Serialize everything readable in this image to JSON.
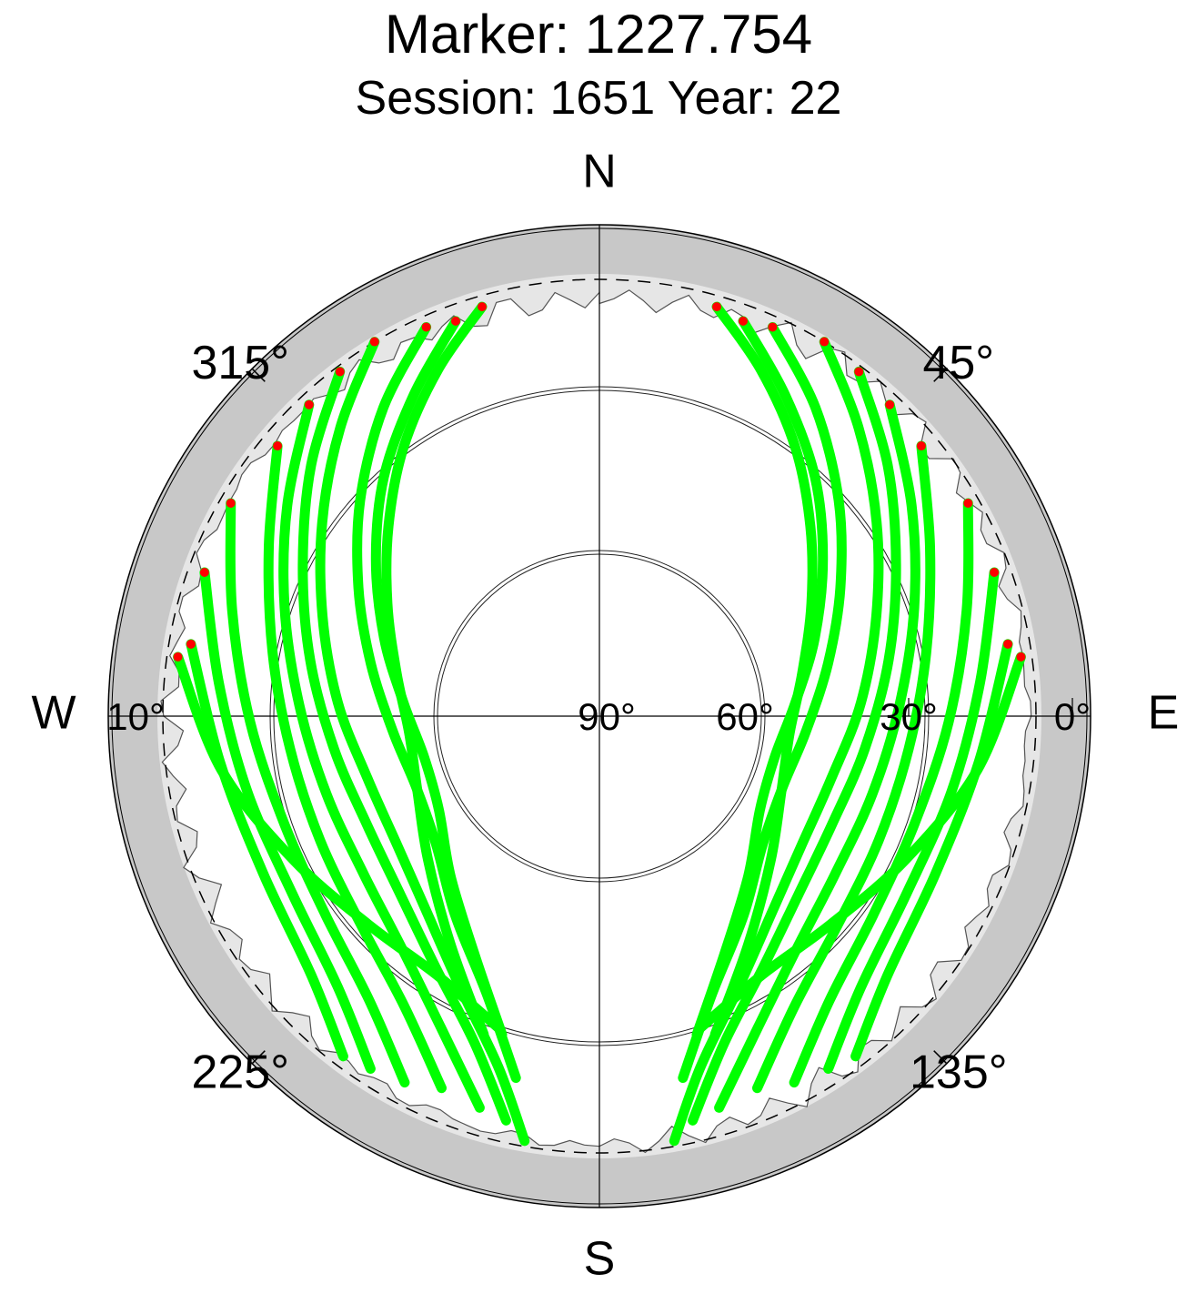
{
  "title": "Marker: 1227.754",
  "subtitle": "Session: 1651 Year: 22",
  "colors": {
    "track": "#00ff00",
    "track_end": "#ff0000",
    "horizon_fill": "#c8c8c8",
    "mask_fill": "#e6e6e6",
    "background": "#ffffff"
  },
  "chart_data": {
    "type": "scatter",
    "projection": "polar-skyplot",
    "title": "Marker: 1227.754",
    "subtitle": "Session: 1651 Year: 22",
    "cardinal_labels": {
      "north": "N",
      "east": "E",
      "south": "S",
      "west": "W"
    },
    "azimuth_labels": [
      {
        "az": 45,
        "text": "45°"
      },
      {
        "az": 135,
        "text": "135°"
      },
      {
        "az": 225,
        "text": "225°"
      },
      {
        "az": 315,
        "text": "315°"
      }
    ],
    "elevation_labels": [
      {
        "el": 90,
        "text": "90°"
      },
      {
        "el": 60,
        "text": "60°"
      },
      {
        "el": 30,
        "text": "30°"
      },
      {
        "el": 0,
        "text": "0°"
      },
      {
        "el": 10,
        "text": "10°"
      }
    ],
    "elevation_rings": [
      90,
      60,
      30
    ],
    "cutoff_elevation": 10,
    "radial_range": [
      0,
      90
    ],
    "satellite_tracks": [
      {
        "az": [
          16,
          25,
          36,
          48,
          62,
          78,
          95,
          112,
          130,
          147,
          160
        ],
        "el": [
          12,
          20,
          29,
          38,
          46,
          52,
          55,
          54,
          49,
          40,
          28
        ]
      },
      {
        "az": [
          20,
          30,
          42,
          55,
          70,
          86,
          103,
          120,
          137,
          152,
          163
        ],
        "el": [
          13,
          22,
          31,
          40,
          48,
          54,
          57,
          56,
          50,
          41,
          29
        ]
      },
      {
        "az": [
          24,
          35,
          48,
          62,
          77,
          94,
          111,
          128,
          144,
          158,
          167
        ],
        "el": [
          12,
          21,
          31,
          40,
          47,
          52,
          54,
          52,
          45,
          35,
          22
        ]
      },
      {
        "az": [
          31,
          42,
          55,
          70,
          87,
          105,
          123,
          139,
          153,
          164,
          170
        ],
        "el": [
          10,
          19,
          28,
          36,
          42,
          46,
          46,
          42,
          34,
          23,
          11
        ]
      },
      {
        "az": [
          37,
          49,
          63,
          79,
          97,
          115,
          132,
          147,
          159,
          167
        ],
        "el": [
          11,
          20,
          29,
          36,
          41,
          43,
          41,
          35,
          26,
          14
        ]
      },
      {
        "az": [
          43,
          56,
          71,
          88,
          106,
          124,
          140,
          153,
          163
        ],
        "el": [
          12,
          21,
          29,
          35,
          38,
          38,
          34,
          26,
          15
        ]
      },
      {
        "az": [
          50,
          63,
          79,
          96,
          114,
          131,
          146,
          157
        ],
        "el": [
          13,
          22,
          29,
          33,
          34,
          32,
          26,
          16
        ]
      },
      {
        "az": [
          60,
          74,
          91,
          109,
          126,
          141,
          152
        ],
        "el": [
          12,
          20,
          26,
          29,
          28,
          23,
          14
        ]
      },
      {
        "az": [
          70,
          85,
          102,
          120,
          136,
          147
        ],
        "el": [
          13,
          20,
          24,
          25,
          21,
          13
        ]
      },
      {
        "az": [
          80,
          97,
          115,
          132,
          143
        ],
        "el": [
          14,
          20,
          22,
          19,
          12
        ]
      },
      {
        "az": [
          344,
          335,
          324,
          312,
          298,
          282,
          265,
          248,
          230,
          213,
          200
        ],
        "el": [
          12,
          20,
          29,
          38,
          46,
          52,
          55,
          54,
          49,
          40,
          28
        ]
      },
      {
        "az": [
          340,
          330,
          318,
          305,
          290,
          274,
          257,
          240,
          223,
          208,
          197
        ],
        "el": [
          13,
          22,
          31,
          40,
          48,
          54,
          57,
          56,
          50,
          41,
          29
        ]
      },
      {
        "az": [
          336,
          325,
          312,
          298,
          283,
          266,
          249,
          232,
          216,
          202,
          193
        ],
        "el": [
          12,
          21,
          31,
          40,
          47,
          52,
          54,
          52,
          45,
          35,
          22
        ]
      },
      {
        "az": [
          329,
          318,
          305,
          290,
          273,
          255,
          237,
          221,
          207,
          196,
          190
        ],
        "el": [
          10,
          19,
          28,
          36,
          42,
          46,
          46,
          42,
          34,
          23,
          11
        ]
      },
      {
        "az": [
          323,
          311,
          297,
          281,
          263,
          245,
          228,
          213,
          201,
          193
        ],
        "el": [
          11,
          20,
          29,
          36,
          41,
          43,
          41,
          35,
          26,
          14
        ]
      },
      {
        "az": [
          317,
          304,
          289,
          272,
          254,
          236,
          220,
          207,
          197
        ],
        "el": [
          12,
          21,
          29,
          35,
          38,
          38,
          34,
          26,
          15
        ]
      },
      {
        "az": [
          310,
          297,
          281,
          264,
          246,
          229,
          214,
          203
        ],
        "el": [
          13,
          22,
          29,
          33,
          34,
          32,
          26,
          16
        ]
      },
      {
        "az": [
          300,
          286,
          269,
          251,
          234,
          219,
          208
        ],
        "el": [
          12,
          20,
          26,
          29,
          28,
          23,
          14
        ]
      },
      {
        "az": [
          290,
          275,
          258,
          240,
          224,
          213
        ],
        "el": [
          13,
          20,
          24,
          25,
          21,
          13
        ]
      },
      {
        "az": [
          280,
          263,
          245,
          228,
          217
        ],
        "el": [
          14,
          20,
          22,
          19,
          12
        ]
      },
      {
        "az": [
          278,
          262,
          245,
          228,
          212,
          198
        ],
        "el": [
          12,
          20,
          28,
          33,
          34,
          30
        ]
      },
      {
        "az": [
          82,
          98,
          115,
          132,
          148,
          162
        ],
        "el": [
          12,
          20,
          28,
          33,
          34,
          30
        ]
      }
    ]
  }
}
